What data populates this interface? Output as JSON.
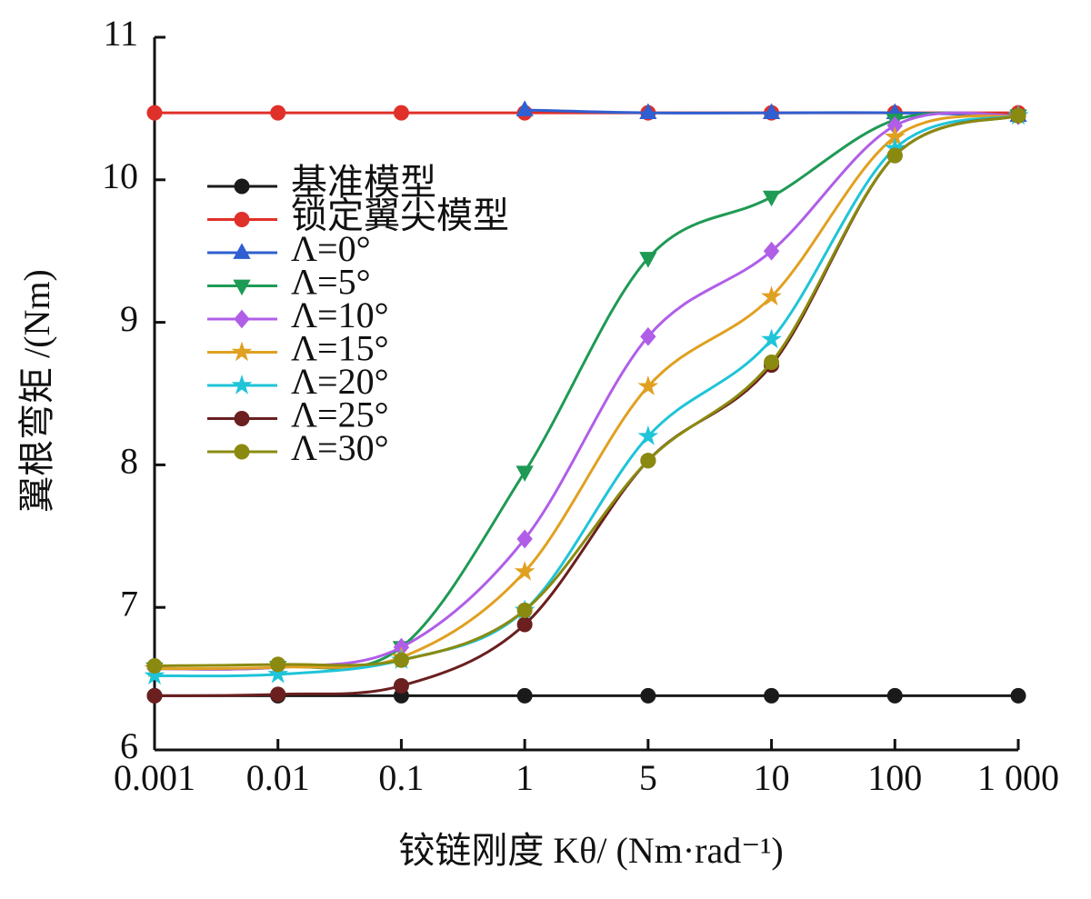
{
  "chart_data": {
    "type": "line",
    "x_label": "铰链刚度 Kθ/ (Nm·rad⁻¹)",
    "y_label": "翼根弯矩 /(Nm)",
    "categories": [
      "0.001",
      "0.01",
      "0.1",
      "1",
      "5",
      "10",
      "100",
      "1 000"
    ],
    "ylim": [
      6,
      11
    ],
    "yticks": [
      6,
      7,
      8,
      9,
      10,
      11
    ],
    "series": [
      {
        "name": "基准模型",
        "color": "#1a1a1a",
        "marker": "circle",
        "values": [
          6.38,
          6.38,
          6.38,
          6.38,
          6.38,
          6.38,
          6.38,
          6.38
        ]
      },
      {
        "name": "锁定翼尖模型",
        "color": "#e0302a",
        "marker": "circle",
        "values": [
          10.47,
          10.47,
          10.47,
          10.47,
          10.47,
          10.47,
          10.47,
          10.47
        ]
      },
      {
        "name": "Λ=0°",
        "color": "#2f5fd0",
        "marker": "triangle",
        "values": [
          null,
          null,
          null,
          10.49,
          10.47,
          10.47,
          10.47,
          10.45
        ]
      },
      {
        "name": "Λ=5°",
        "color": "#1e9a55",
        "marker": "triangle-down",
        "values": [
          6.57,
          6.58,
          6.72,
          7.95,
          9.45,
          9.88,
          10.42,
          10.45
        ]
      },
      {
        "name": "Λ=10°",
        "color": "#b05ee8",
        "marker": "diamond",
        "values": [
          6.57,
          6.58,
          6.72,
          7.48,
          8.9,
          9.5,
          10.38,
          10.45
        ]
      },
      {
        "name": "Λ=15°",
        "color": "#e0a020",
        "marker": "star",
        "values": [
          6.57,
          6.58,
          6.65,
          7.25,
          8.55,
          9.18,
          10.3,
          10.45
        ]
      },
      {
        "name": "Λ=20°",
        "color": "#1fc4d8",
        "marker": "star",
        "values": [
          6.52,
          6.53,
          6.63,
          6.98,
          8.2,
          8.88,
          10.22,
          10.45
        ]
      },
      {
        "name": "Λ=25°",
        "color": "#6b1f1f",
        "marker": "circle",
        "values": [
          6.38,
          6.39,
          6.45,
          6.88,
          8.03,
          8.7,
          10.17,
          10.45
        ]
      },
      {
        "name": "Λ=30°",
        "color": "#8a8a10",
        "marker": "circle",
        "values": [
          6.59,
          6.6,
          6.63,
          6.98,
          8.03,
          8.72,
          10.17,
          10.45
        ]
      }
    ]
  }
}
